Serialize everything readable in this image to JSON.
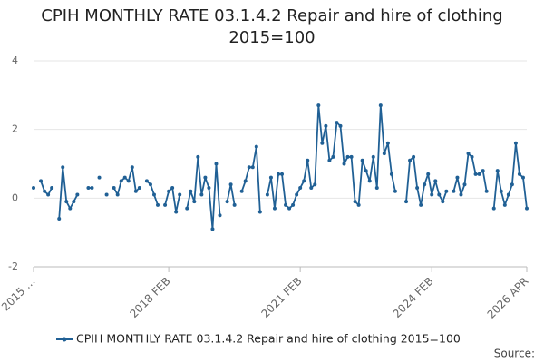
{
  "chart_data": {
    "type": "line",
    "title": "CPIH MONTHLY RATE 03.1.4.2 Repair and hire of clothing 2015=100",
    "source": "Source:",
    "categories": [
      "2015 …",
      null,
      null,
      null,
      null,
      null,
      null,
      null,
      null,
      null,
      null,
      null,
      null,
      null,
      null,
      null,
      null,
      null,
      null,
      null,
      null,
      null,
      null,
      null,
      null,
      null,
      null,
      null,
      null,
      null,
      null,
      null,
      null,
      null,
      null,
      null,
      null,
      "2018 FEB",
      null,
      null,
      null,
      null,
      null,
      null,
      null,
      null,
      null,
      null,
      null,
      null,
      null,
      null,
      null,
      null,
      null,
      null,
      null,
      null,
      null,
      null,
      null,
      null,
      null,
      null,
      null,
      null,
      null,
      null,
      null,
      null,
      null,
      null,
      null,
      "2021 FEB",
      null,
      null,
      null,
      null,
      null,
      null,
      null,
      null,
      null,
      null,
      null,
      null,
      null,
      null,
      null,
      null,
      null,
      null,
      null,
      null,
      null,
      null,
      null,
      null,
      null,
      null,
      null,
      null,
      null,
      null,
      null,
      null,
      null,
      null,
      null,
      "2024 FEB",
      null,
      null,
      null,
      null,
      null,
      null,
      null,
      null,
      null,
      null,
      null,
      null,
      null,
      null,
      null,
      null,
      null,
      null,
      null,
      null,
      null,
      null,
      null,
      null,
      null,
      "2026 APR"
    ],
    "series": [
      {
        "name": "CPIH MONTHLY RATE 03.1.4.2 Repair and hire of clothing 2015=100",
        "color": "#206095",
        "values": [
          0.3,
          null,
          0.5,
          0.2,
          0.1,
          0.3,
          null,
          -0.6,
          0.9,
          -0.1,
          -0.3,
          -0.1,
          0.1,
          null,
          null,
          0.3,
          0.3,
          null,
          0.6,
          null,
          0.1,
          null,
          0.3,
          0.1,
          0.5,
          0.6,
          0.5,
          0.9,
          0.2,
          0.3,
          null,
          0.5,
          0.4,
          0.1,
          -0.2,
          null,
          -0.2,
          0.2,
          0.3,
          -0.4,
          0.1,
          null,
          -0.3,
          0.2,
          -0.1,
          1.2,
          0.1,
          0.6,
          0.3,
          -0.9,
          1.0,
          -0.5,
          null,
          -0.1,
          0.4,
          -0.2,
          null,
          0.2,
          0.5,
          0.9,
          0.9,
          1.5,
          -0.4,
          null,
          0.1,
          0.6,
          -0.3,
          0.7,
          0.7,
          -0.2,
          -0.3,
          -0.2,
          0.1,
          0.3,
          0.5,
          1.1,
          0.3,
          0.4,
          2.7,
          1.6,
          2.1,
          1.1,
          1.2,
          2.2,
          2.1,
          1.0,
          1.2,
          1.2,
          -0.1,
          -0.2,
          1.1,
          0.8,
          0.5,
          1.2,
          0.3,
          2.7,
          1.3,
          1.6,
          0.7,
          0.2,
          null,
          null,
          -0.1,
          1.1,
          1.2,
          0.3,
          -0.2,
          0.4,
          0.7,
          0.1,
          0.5,
          0.1,
          -0.1,
          0.2,
          null,
          0.2,
          0.6,
          0.1,
          0.4,
          1.3,
          1.2,
          0.7,
          0.7,
          0.8,
          0.2,
          null,
          -0.3,
          0.8,
          0.2,
          -0.2,
          0.1,
          0.4,
          1.6,
          0.7,
          0.6,
          -0.3
        ]
      }
    ],
    "ylim": [
      -2,
      4
    ],
    "yticks": [
      -2,
      0,
      2,
      4
    ],
    "grid": true
  }
}
